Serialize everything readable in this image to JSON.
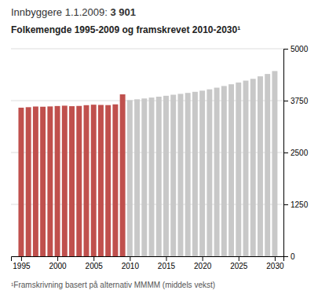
{
  "chart_data": {
    "type": "bar",
    "title": "Folkemengde 1995-2009 og framskrevet 2010-2030¹",
    "annotations": [
      "Innbyggere 1.1.2009: ",
      "3 901",
      "¹Framskrivning basert på alternativ MMMM (middels vekst)"
    ],
    "x": [
      1995,
      1996,
      1997,
      1998,
      1999,
      2000,
      2001,
      2002,
      2003,
      2004,
      2005,
      2006,
      2007,
      2008,
      2009,
      2010,
      2011,
      2012,
      2013,
      2014,
      2015,
      2016,
      2017,
      2018,
      2019,
      2020,
      2021,
      2022,
      2023,
      2024,
      2025,
      2026,
      2027,
      2028,
      2029,
      2030
    ],
    "values": [
      3580,
      3592,
      3608,
      3603,
      3610,
      3620,
      3628,
      3616,
      3622,
      3640,
      3652,
      3646,
      3642,
      3660,
      3901,
      3762,
      3782,
      3802,
      3824,
      3845,
      3867,
      3892,
      3913,
      3936,
      3962,
      3990,
      4022,
      4062,
      4102,
      4144,
      4186,
      4232,
      4275,
      4335,
      4392,
      4462
    ],
    "colors": [
      "#c0504d",
      "#c0504d",
      "#c0504d",
      "#c0504d",
      "#c0504d",
      "#c0504d",
      "#c0504d",
      "#c0504d",
      "#c0504d",
      "#c0504d",
      "#c0504d",
      "#c0504d",
      "#c0504d",
      "#c0504d",
      "#c0504d",
      "#c8c8c8",
      "#c8c8c8",
      "#c8c8c8",
      "#c8c8c8",
      "#c8c8c8",
      "#c8c8c8",
      "#c8c8c8",
      "#c8c8c8",
      "#c8c8c8",
      "#c8c8c8",
      "#c8c8c8",
      "#c8c8c8",
      "#c8c8c8",
      "#c8c8c8",
      "#c8c8c8",
      "#c8c8c8",
      "#c8c8c8",
      "#c8c8c8",
      "#c8c8c8",
      "#c8c8c8",
      "#c8c8c8"
    ],
    "xlim": [
      1993.6,
      2031.2
    ],
    "xticks": [
      1995,
      2000,
      2005,
      2010,
      2015,
      2020,
      2025,
      2030
    ],
    "ylim": [
      0,
      5000
    ],
    "yticks": [
      0,
      1250,
      2500,
      3750,
      5000
    ],
    "grid": true
  }
}
